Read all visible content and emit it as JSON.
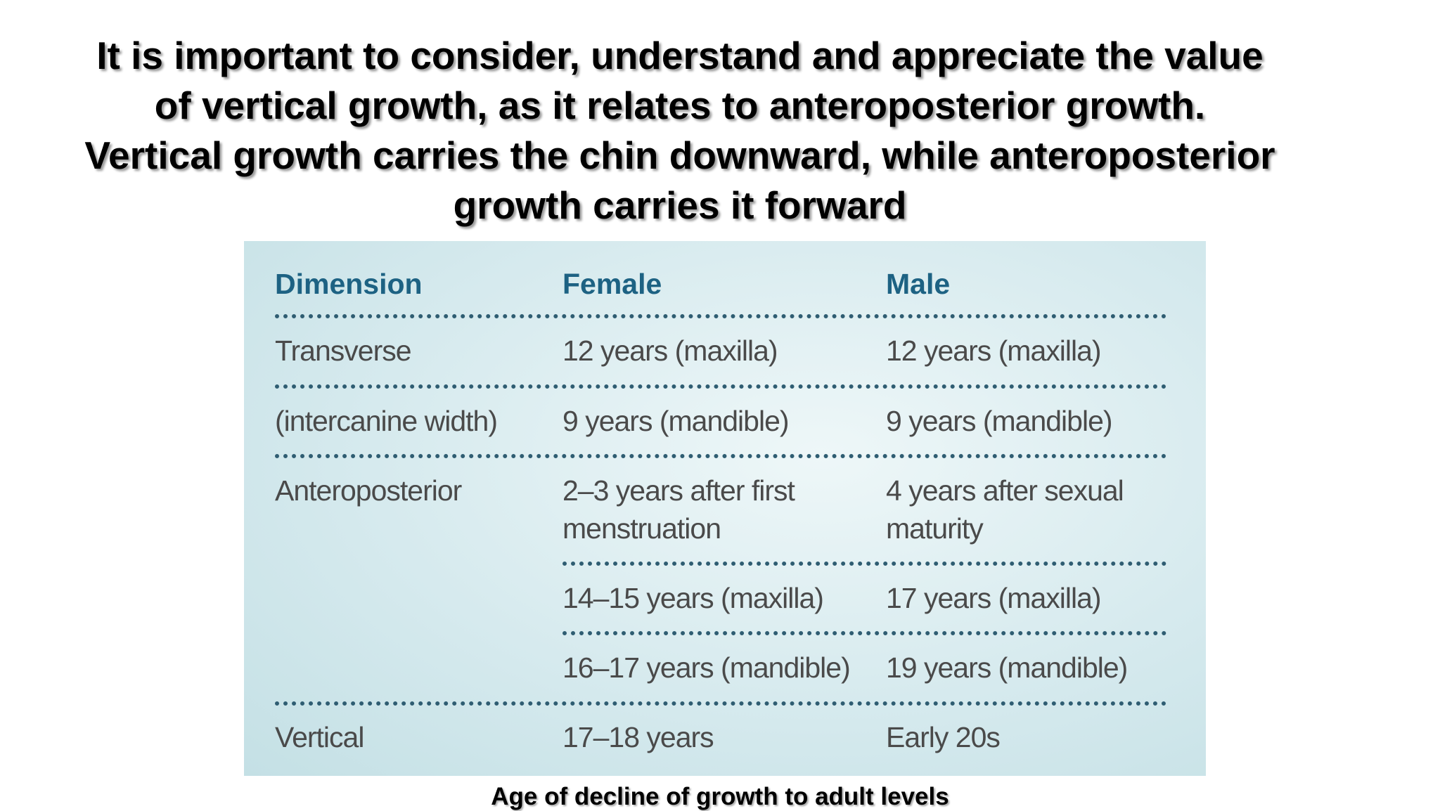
{
  "heading": "It is important to consider, understand and appreciate the value of vertical growth, as it relates to anteroposterior growth. Vertical growth carries the chin downward, while anteroposterior growth carries it forward",
  "table": {
    "headers": [
      "Dimension",
      "Female",
      "Male"
    ],
    "rows": [
      {
        "dimension": "Transverse",
        "female": "12 years (maxilla)",
        "male": "12 years (maxilla)"
      },
      {
        "dimension": "(intercanine width)",
        "female": "9 years (mandible)",
        "male": "9 years (mandible)"
      },
      {
        "dimension": "Anteroposterior",
        "female": "2–3 years after first menstruation",
        "male": "4 years after sexual maturity"
      },
      {
        "female": "14–15 years (maxilla)",
        "male": "17 years (maxilla)"
      },
      {
        "female": "16–17 years (mandible)",
        "male": "19 years (mandible)"
      },
      {
        "dimension": "Vertical",
        "female": "17–18 years",
        "male": "Early 20s"
      }
    ]
  },
  "caption": "Age of decline of growth to adult levels"
}
